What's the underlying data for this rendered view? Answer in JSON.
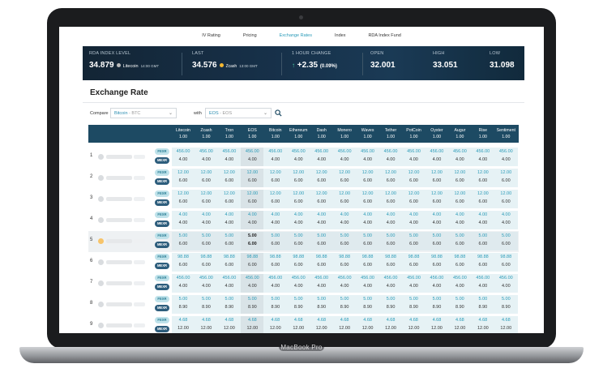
{
  "nav": [
    "IV Rating",
    "Pricing",
    "Exchange Rates",
    "Index",
    "RDA Index Fund"
  ],
  "nav_active": 2,
  "banner": {
    "index_label": "RDA INDEX LEVEL",
    "index_value": "34.879",
    "index_coin": "Litecoin",
    "index_time": "14:00 GMT",
    "last_label": "LAST",
    "last_value": "34.576",
    "last_coin": "Zcash",
    "last_time": "13:00 GMT",
    "change_label": "1 HOUR CHANGE",
    "change_value": "+2.35",
    "change_pct": "(0.09%)",
    "open_label": "OPEN",
    "open_value": "32.001",
    "high_label": "HIGH",
    "high_value": "33.051",
    "low_label": "LOW",
    "low_value": "31.098"
  },
  "title": "Exchange Rate",
  "compare": {
    "label": "Compare",
    "coin": "Bitcoin",
    "code": "- BTC"
  },
  "with": {
    "label": "with",
    "coin": "EOS",
    "code": "- EOS"
  },
  "columns": [
    "Litecoin",
    "Zcash",
    "Tron",
    "EOS",
    "Bitcoin",
    "Ethereum",
    "Dash",
    "Monero",
    "Waves",
    "Tether",
    "PotCoin",
    "Oyster",
    "Augur",
    "Rise",
    "Sentiment"
  ],
  "column_base": "1.00",
  "badge_f": "FEXR",
  "badge_m": "MEXR",
  "rows": [
    {
      "n": "1",
      "f": "456.00",
      "m": "4.00"
    },
    {
      "n": "2",
      "f": "12.00",
      "m": "6.00"
    },
    {
      "n": "3",
      "f": "12.00",
      "m": "6.00"
    },
    {
      "n": "4",
      "f": "4.00",
      "m": "4.00"
    },
    {
      "n": "5",
      "f": "5.00",
      "m": "6.00"
    },
    {
      "n": "6",
      "f": "98.88",
      "m": "6.00"
    },
    {
      "n": "7",
      "f": "456.00",
      "m": "4.00"
    },
    {
      "n": "8",
      "f": "5.00",
      "m": "8.90"
    },
    {
      "n": "9",
      "f": "4.68",
      "m": "12.00"
    }
  ],
  "highlight_row": 4,
  "highlight_col": 3,
  "brand": "MacBook Pro",
  "colors": {
    "accent": "#2a9bb8",
    "header": "#1d4a63"
  }
}
